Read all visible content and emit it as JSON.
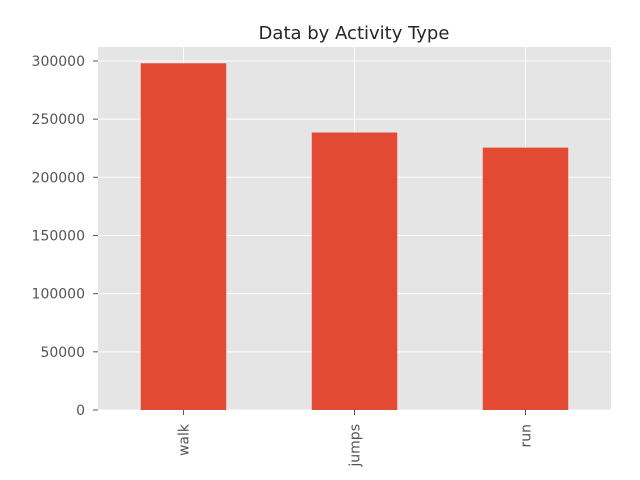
{
  "chart_data": {
    "type": "bar",
    "title": "Data by Activity Type",
    "xlabel": "",
    "ylabel": "",
    "categories": [
      "walk",
      "jumps",
      "run"
    ],
    "values": [
      298000,
      238500,
      225500
    ],
    "ylim": [
      0,
      312000
    ],
    "yticks": [
      0,
      50000,
      100000,
      150000,
      200000,
      250000,
      300000
    ],
    "grid": true,
    "legend": false,
    "colors": {
      "bar": "#E24A33",
      "plot_background": "#E5E5E5",
      "grid": "#FFFFFF"
    }
  }
}
